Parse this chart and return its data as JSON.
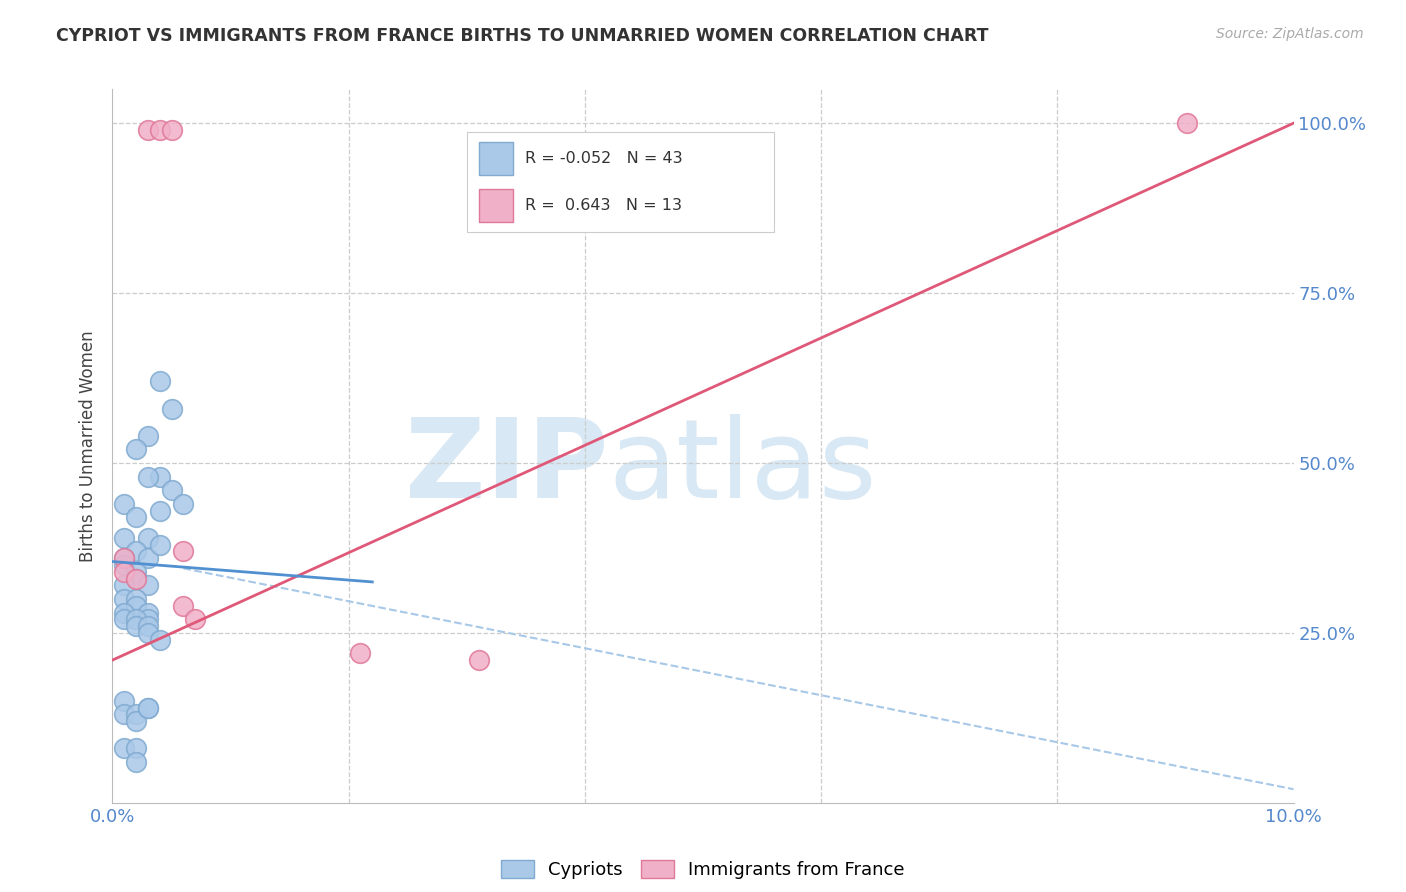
{
  "title": "CYPRIOT VS IMMIGRANTS FROM FRANCE BIRTHS TO UNMARRIED WOMEN CORRELATION CHART",
  "source": "Source: ZipAtlas.com",
  "ylabel": "Births to Unmarried Women",
  "cypriot_color": "#aac8e8",
  "france_color": "#f0b0c8",
  "cypriot_edge": "#80aad0",
  "france_edge": "#e07898",
  "blue_line_color": "#5090d0",
  "pink_line_color": "#e05878",
  "dashed_line_color": "#a8c8e8",
  "cypriot_x": [
    0.004,
    0.005,
    0.003,
    0.004,
    0.005,
    0.006,
    0.002,
    0.003,
    0.004,
    0.001,
    0.002,
    0.003,
    0.001,
    0.002,
    0.003,
    0.004,
    0.001,
    0.001,
    0.002,
    0.002,
    0.003,
    0.001,
    0.001,
    0.002,
    0.002,
    0.003,
    0.003,
    0.001,
    0.001,
    0.002,
    0.002,
    0.003,
    0.003,
    0.004,
    0.001,
    0.001,
    0.002,
    0.002,
    0.003,
    0.001,
    0.002,
    0.002,
    0.003
  ],
  "cypriot_y": [
    0.62,
    0.58,
    0.54,
    0.48,
    0.46,
    0.44,
    0.52,
    0.48,
    0.43,
    0.44,
    0.42,
    0.39,
    0.39,
    0.37,
    0.36,
    0.38,
    0.36,
    0.35,
    0.34,
    0.33,
    0.32,
    0.32,
    0.3,
    0.3,
    0.29,
    0.28,
    0.27,
    0.28,
    0.27,
    0.27,
    0.26,
    0.26,
    0.25,
    0.24,
    0.15,
    0.13,
    0.13,
    0.12,
    0.14,
    0.08,
    0.08,
    0.06,
    0.14
  ],
  "france_x": [
    0.003,
    0.004,
    0.005,
    0.001,
    0.001,
    0.002,
    0.006,
    0.006,
    0.007,
    0.021,
    0.031,
    0.091
  ],
  "france_y": [
    0.99,
    0.99,
    0.99,
    0.36,
    0.34,
    0.33,
    0.37,
    0.29,
    0.27,
    0.22,
    0.21,
    1.0
  ],
  "blue_line_x": [
    0.0,
    0.022
  ],
  "blue_line_y": [
    0.355,
    0.325
  ],
  "pink_line_x": [
    0.0,
    0.1
  ],
  "pink_line_y": [
    0.21,
    1.0
  ],
  "dashed_line_x": [
    0.006,
    0.1
  ],
  "dashed_line_y": [
    0.345,
    0.02
  ],
  "xlim": [
    0.0,
    0.1
  ],
  "ylim": [
    0.0,
    1.05
  ],
  "ytick_positions": [
    0.0,
    0.25,
    0.5,
    0.75,
    1.0
  ],
  "right_ytick_labels": [
    "25.0%",
    "50.0%",
    "75.0%",
    "100.0%"
  ],
  "xtick_positions": [
    0.0,
    0.02,
    0.04,
    0.06,
    0.08,
    0.1
  ]
}
